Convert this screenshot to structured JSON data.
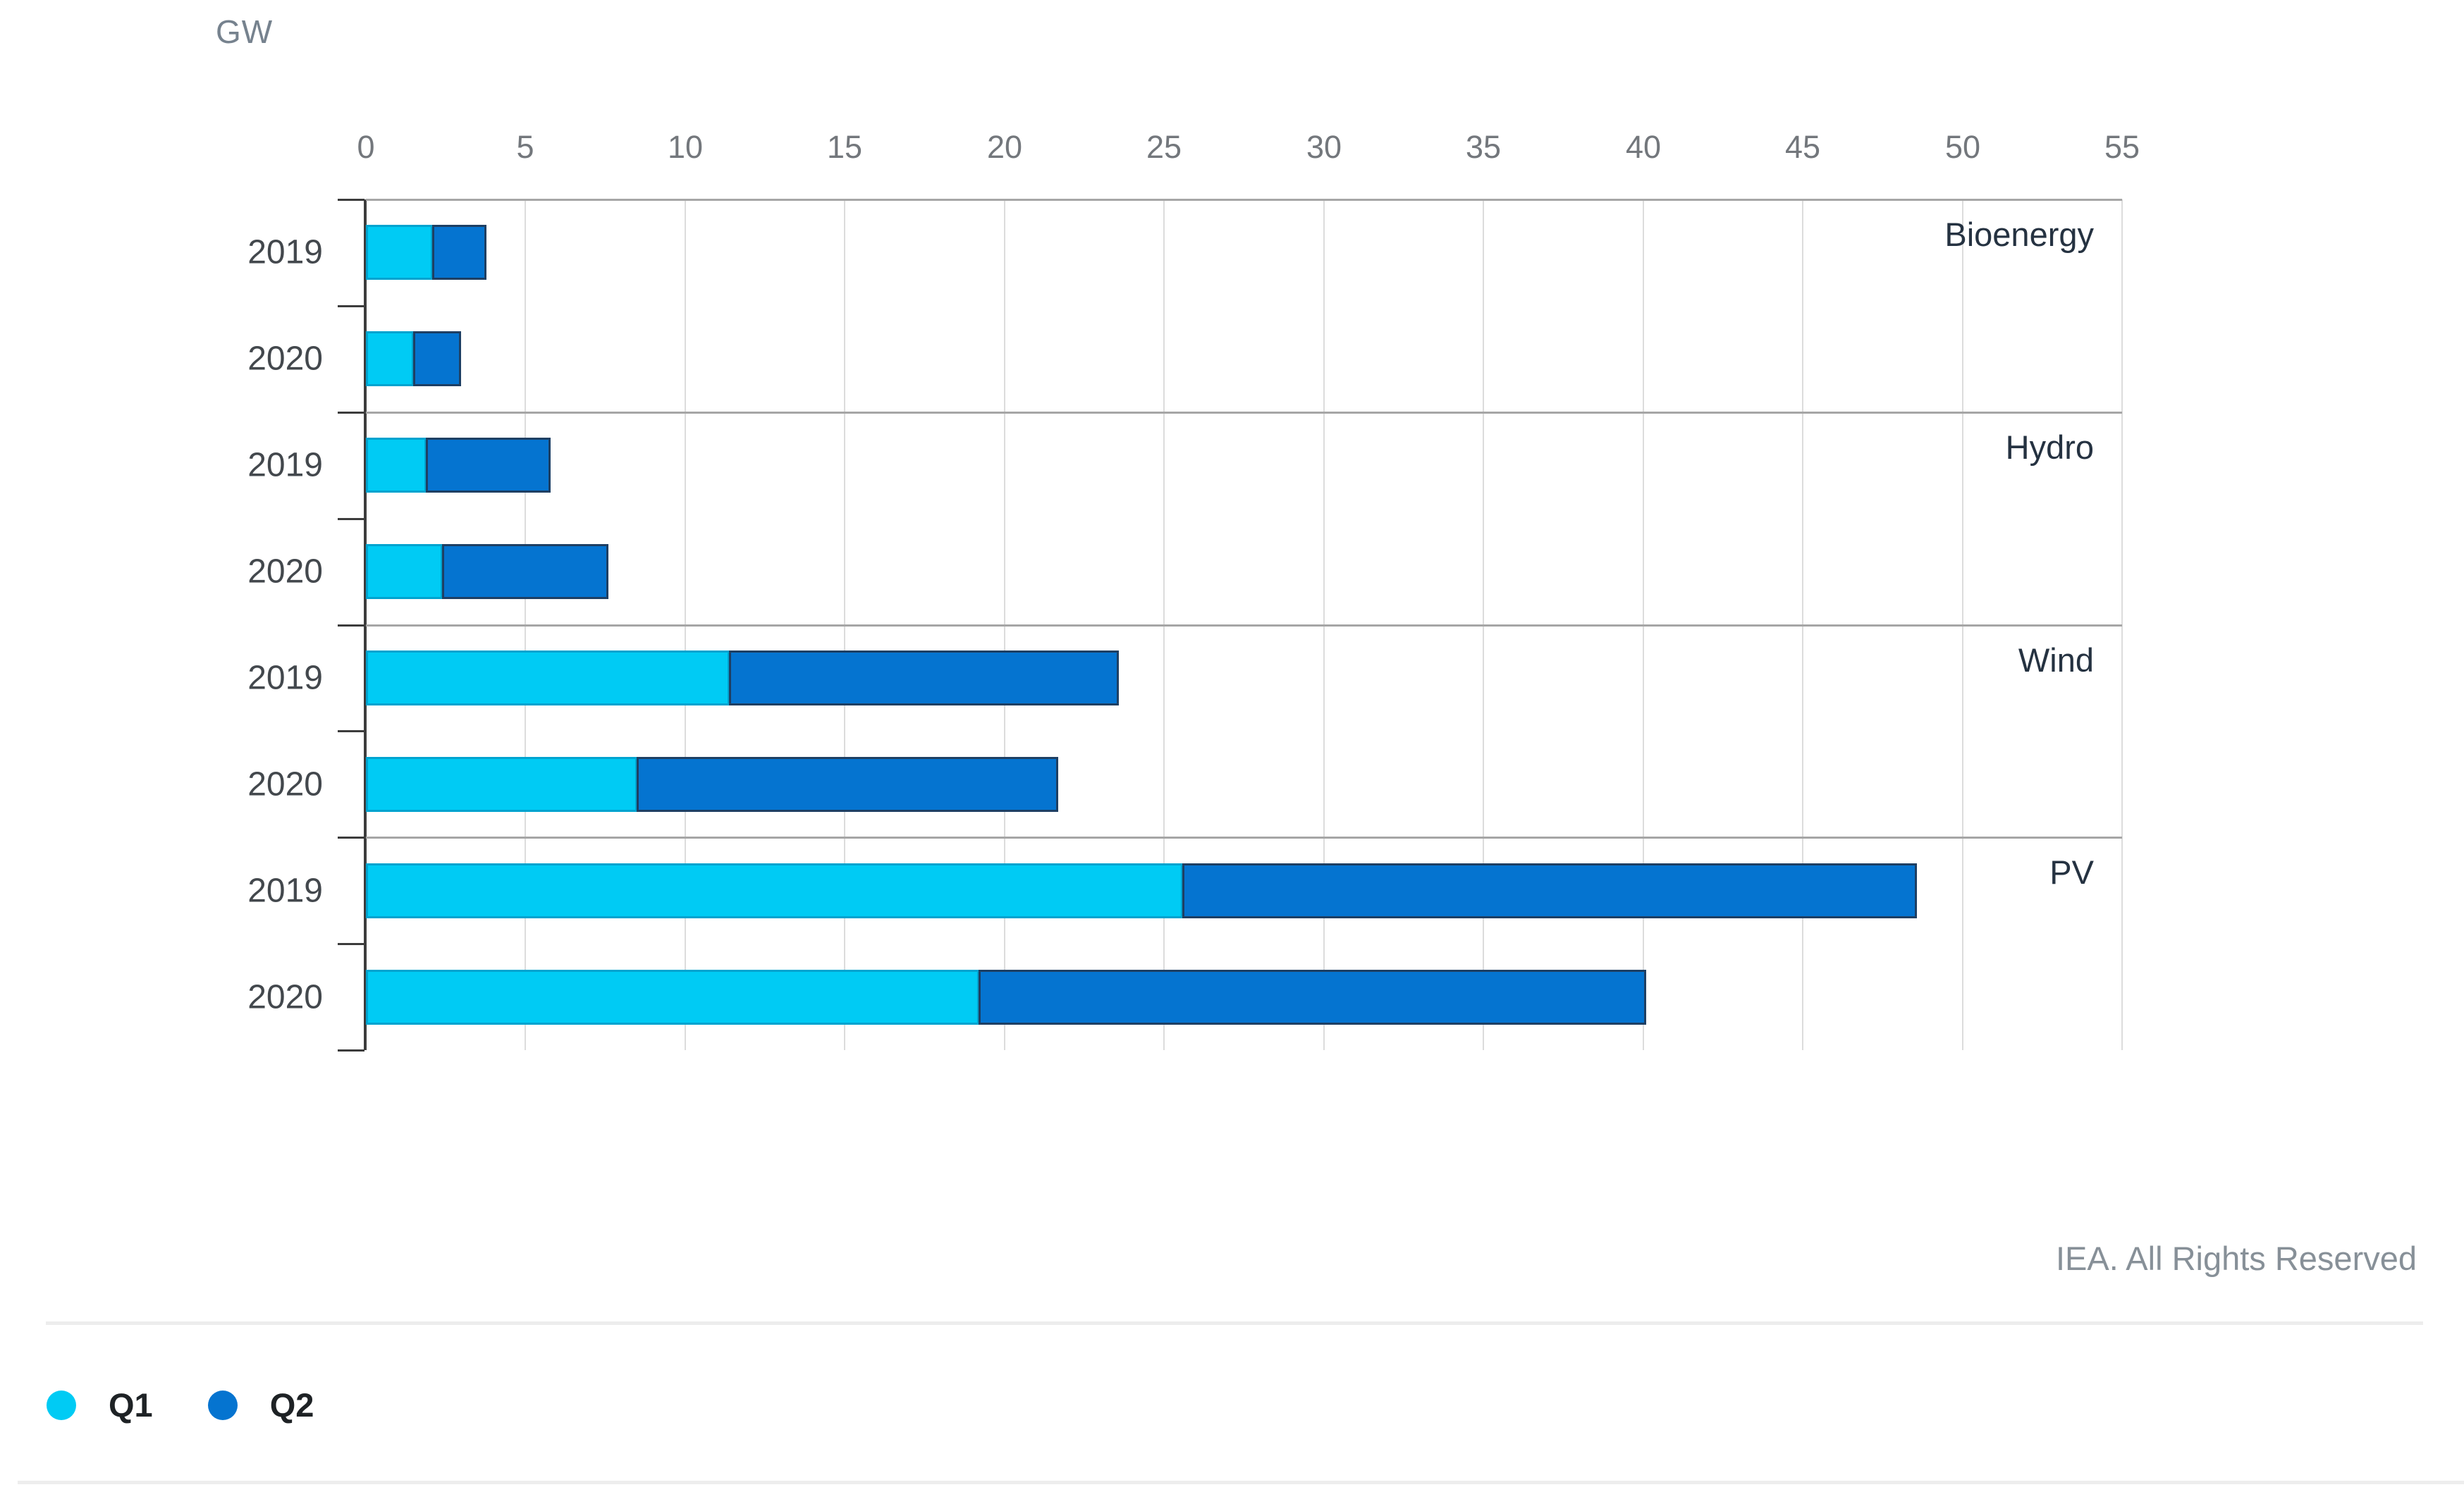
{
  "header": {
    "unit_label": "GW"
  },
  "chart_data": {
    "type": "bar",
    "subtype": "horizontal-stacked-grouped",
    "unit": "GW",
    "x_axis": {
      "min": 0,
      "max": 55,
      "tick_step": 5,
      "grid": true
    },
    "series_names": [
      "Q1",
      "Q2"
    ],
    "groups": [
      {
        "label": "Bioenergy",
        "rows": [
          {
            "year": "2019",
            "values": {
              "Q1": 2.1,
              "Q2": 1.7
            }
          },
          {
            "year": "2020",
            "values": {
              "Q1": 1.5,
              "Q2": 1.5
            }
          }
        ]
      },
      {
        "label": "Hydro",
        "rows": [
          {
            "year": "2019",
            "values": {
              "Q1": 1.9,
              "Q2": 3.9
            }
          },
          {
            "year": "2020",
            "values": {
              "Q1": 2.4,
              "Q2": 5.2
            }
          }
        ]
      },
      {
        "label": "Wind",
        "rows": [
          {
            "year": "2019",
            "values": {
              "Q1": 11.4,
              "Q2": 12.2
            }
          },
          {
            "year": "2020",
            "values": {
              "Q1": 8.5,
              "Q2": 13.2
            }
          }
        ]
      },
      {
        "label": "PV",
        "rows": [
          {
            "year": "2019",
            "values": {
              "Q1": 25.6,
              "Q2": 23.0
            }
          },
          {
            "year": "2020",
            "values": {
              "Q1": 19.2,
              "Q2": 20.9
            }
          }
        ]
      }
    ],
    "legend": [
      {
        "label": "Q1",
        "color": "#00cbf4"
      },
      {
        "label": "Q2",
        "color": "#0574d0"
      }
    ],
    "legend_position": "bottom-left"
  },
  "colors": {
    "q1_fill": "#00cbf4",
    "q1_border": "#00a3cf",
    "q2_fill": "#0574d0",
    "q2_border": "#1e3f63",
    "grid": "#dcdcdc",
    "separator": "#a6a6a6",
    "axis": "#3c3c3c"
  },
  "footer": {
    "credit": "IEA. All Rights Reserved"
  }
}
